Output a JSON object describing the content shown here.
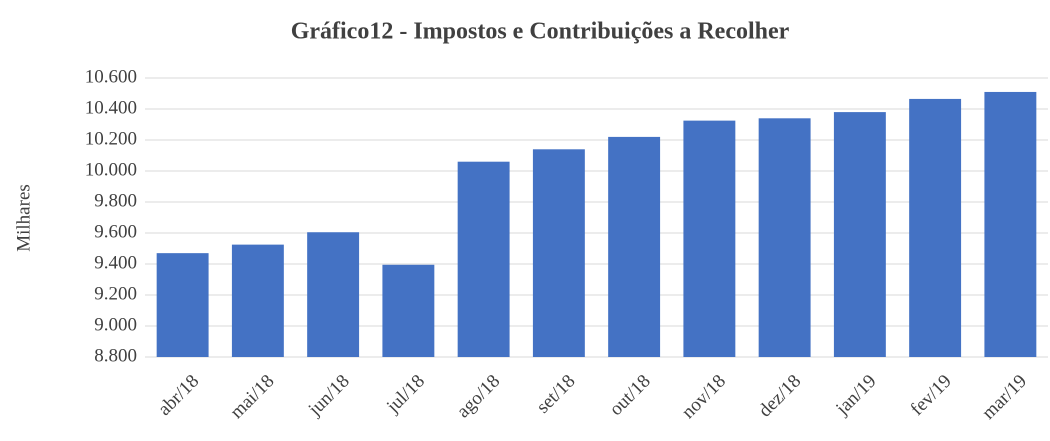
{
  "chart_data": {
    "type": "bar",
    "title": "Gráfico12 - Impostos e Contribuições a Recolher",
    "y_label": "Milhares",
    "categories": [
      "abr/18",
      "mai/18",
      "jun/18",
      "jul/18",
      "ago/18",
      "set/18",
      "out/18",
      "nov/18",
      "dez/18",
      "jan/19",
      "fev/19",
      "mar/19"
    ],
    "values": [
      9470,
      9525,
      9605,
      9395,
      10060,
      10140,
      10220,
      10325,
      10340,
      10380,
      10465,
      10510
    ],
    "color": "#4472c4",
    "ylim": [
      8800,
      10600
    ],
    "yticks": [
      {
        "value": 8800,
        "label": "8.800"
      },
      {
        "value": 9000,
        "label": "9.000"
      },
      {
        "value": 9200,
        "label": "9.200"
      },
      {
        "value": 9400,
        "label": "9.400"
      },
      {
        "value": 9600,
        "label": "9.600"
      },
      {
        "value": 9800,
        "label": "9.800"
      },
      {
        "value": 10000,
        "label": "10.000"
      },
      {
        "value": 10200,
        "label": "10.200"
      },
      {
        "value": 10400,
        "label": "10.400"
      },
      {
        "value": 10600,
        "label": "10.600"
      }
    ],
    "grid": true
  }
}
